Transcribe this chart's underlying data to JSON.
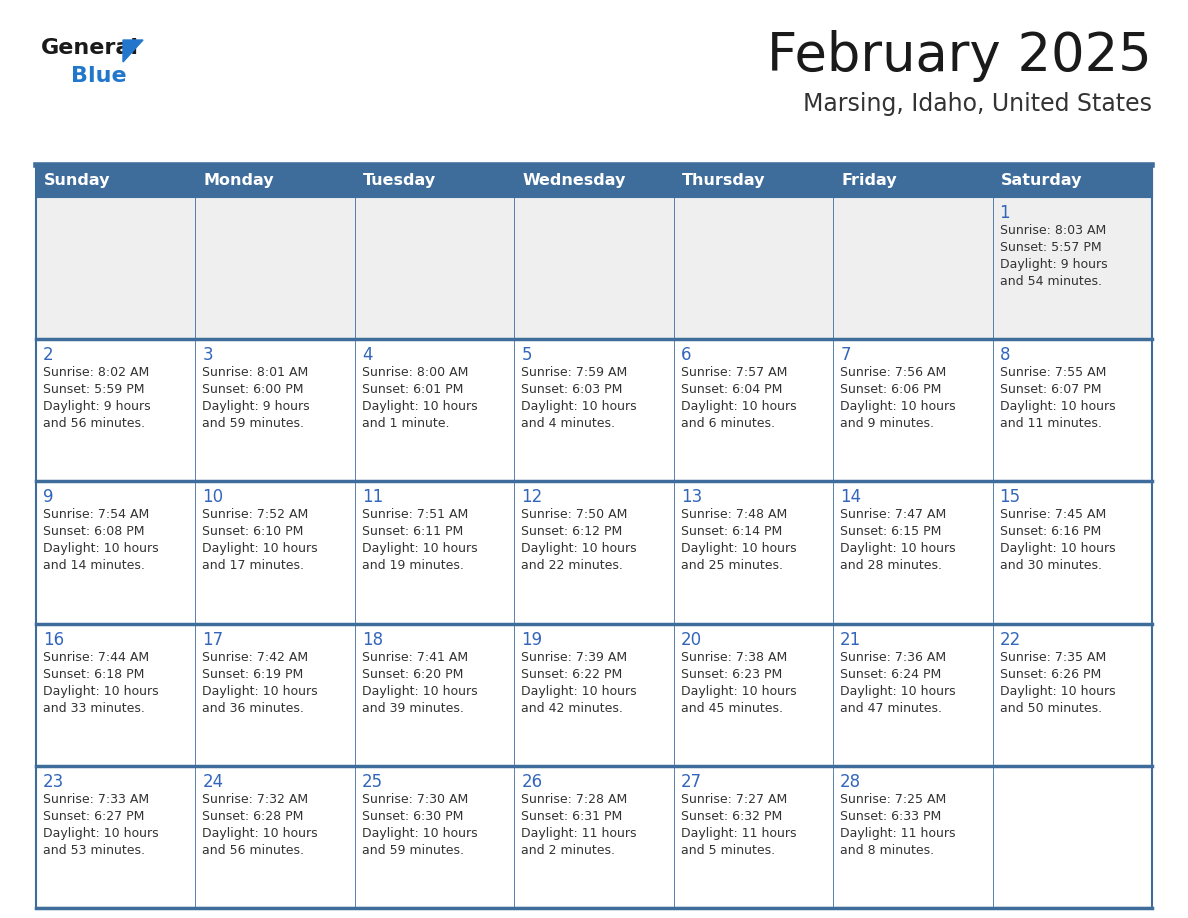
{
  "title": "February 2025",
  "subtitle": "Marsing, Idaho, United States",
  "days_of_week": [
    "Sunday",
    "Monday",
    "Tuesday",
    "Wednesday",
    "Thursday",
    "Friday",
    "Saturday"
  ],
  "header_bg": "#3e6d9c",
  "header_text": "#ffffff",
  "cell_bg_gray": "#efefef",
  "cell_bg_white": "#ffffff",
  "border_color": "#3e6d9c",
  "sep_line_color": "#3e6d9c",
  "title_color": "#1a1a1a",
  "subtitle_color": "#333333",
  "day_num_color": "#3366bb",
  "cell_text_color": "#333333",
  "logo_general_color": "#1a1a1a",
  "logo_blue_color": "#2277cc",
  "calendar_data": [
    [
      null,
      null,
      null,
      null,
      null,
      null,
      {
        "day": 1,
        "sunrise": "8:03 AM",
        "sunset": "5:57 PM",
        "daylight": "9 hours and 54 minutes."
      }
    ],
    [
      {
        "day": 2,
        "sunrise": "8:02 AM",
        "sunset": "5:59 PM",
        "daylight": "9 hours and 56 minutes."
      },
      {
        "day": 3,
        "sunrise": "8:01 AM",
        "sunset": "6:00 PM",
        "daylight": "9 hours and 59 minutes."
      },
      {
        "day": 4,
        "sunrise": "8:00 AM",
        "sunset": "6:01 PM",
        "daylight": "10 hours and 1 minute."
      },
      {
        "day": 5,
        "sunrise": "7:59 AM",
        "sunset": "6:03 PM",
        "daylight": "10 hours and 4 minutes."
      },
      {
        "day": 6,
        "sunrise": "7:57 AM",
        "sunset": "6:04 PM",
        "daylight": "10 hours and 6 minutes."
      },
      {
        "day": 7,
        "sunrise": "7:56 AM",
        "sunset": "6:06 PM",
        "daylight": "10 hours and 9 minutes."
      },
      {
        "day": 8,
        "sunrise": "7:55 AM",
        "sunset": "6:07 PM",
        "daylight": "10 hours and 11 minutes."
      }
    ],
    [
      {
        "day": 9,
        "sunrise": "7:54 AM",
        "sunset": "6:08 PM",
        "daylight": "10 hours and 14 minutes."
      },
      {
        "day": 10,
        "sunrise": "7:52 AM",
        "sunset": "6:10 PM",
        "daylight": "10 hours and 17 minutes."
      },
      {
        "day": 11,
        "sunrise": "7:51 AM",
        "sunset": "6:11 PM",
        "daylight": "10 hours and 19 minutes."
      },
      {
        "day": 12,
        "sunrise": "7:50 AM",
        "sunset": "6:12 PM",
        "daylight": "10 hours and 22 minutes."
      },
      {
        "day": 13,
        "sunrise": "7:48 AM",
        "sunset": "6:14 PM",
        "daylight": "10 hours and 25 minutes."
      },
      {
        "day": 14,
        "sunrise": "7:47 AM",
        "sunset": "6:15 PM",
        "daylight": "10 hours and 28 minutes."
      },
      {
        "day": 15,
        "sunrise": "7:45 AM",
        "sunset": "6:16 PM",
        "daylight": "10 hours and 30 minutes."
      }
    ],
    [
      {
        "day": 16,
        "sunrise": "7:44 AM",
        "sunset": "6:18 PM",
        "daylight": "10 hours and 33 minutes."
      },
      {
        "day": 17,
        "sunrise": "7:42 AM",
        "sunset": "6:19 PM",
        "daylight": "10 hours and 36 minutes."
      },
      {
        "day": 18,
        "sunrise": "7:41 AM",
        "sunset": "6:20 PM",
        "daylight": "10 hours and 39 minutes."
      },
      {
        "day": 19,
        "sunrise": "7:39 AM",
        "sunset": "6:22 PM",
        "daylight": "10 hours and 42 minutes."
      },
      {
        "day": 20,
        "sunrise": "7:38 AM",
        "sunset": "6:23 PM",
        "daylight": "10 hours and 45 minutes."
      },
      {
        "day": 21,
        "sunrise": "7:36 AM",
        "sunset": "6:24 PM",
        "daylight": "10 hours and 47 minutes."
      },
      {
        "day": 22,
        "sunrise": "7:35 AM",
        "sunset": "6:26 PM",
        "daylight": "10 hours and 50 minutes."
      }
    ],
    [
      {
        "day": 23,
        "sunrise": "7:33 AM",
        "sunset": "6:27 PM",
        "daylight": "10 hours and 53 minutes."
      },
      {
        "day": 24,
        "sunrise": "7:32 AM",
        "sunset": "6:28 PM",
        "daylight": "10 hours and 56 minutes."
      },
      {
        "day": 25,
        "sunrise": "7:30 AM",
        "sunset": "6:30 PM",
        "daylight": "10 hours and 59 minutes."
      },
      {
        "day": 26,
        "sunrise": "7:28 AM",
        "sunset": "6:31 PM",
        "daylight": "11 hours and 2 minutes."
      },
      {
        "day": 27,
        "sunrise": "7:27 AM",
        "sunset": "6:32 PM",
        "daylight": "11 hours and 5 minutes."
      },
      {
        "day": 28,
        "sunrise": "7:25 AM",
        "sunset": "6:33 PM",
        "daylight": "11 hours and 8 minutes."
      },
      null
    ]
  ],
  "fig_width": 11.88,
  "fig_height": 9.18,
  "dpi": 100
}
